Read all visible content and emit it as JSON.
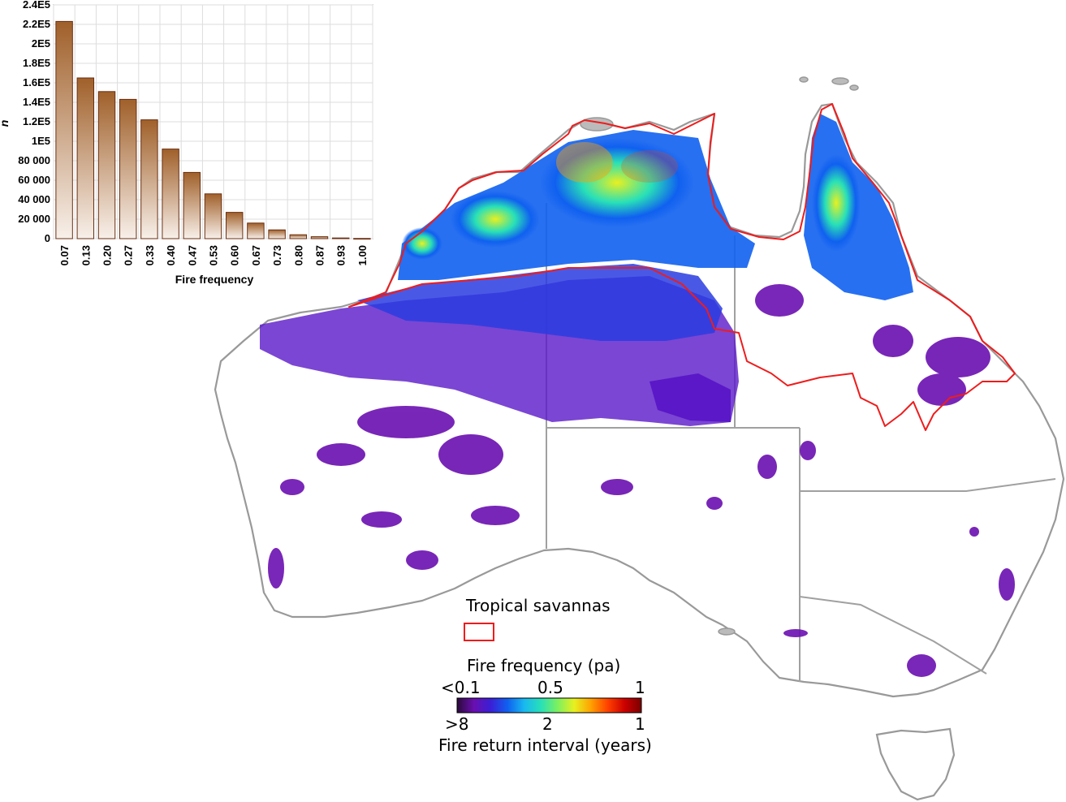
{
  "legend": {
    "savanna_label": "Tropical savannas",
    "frequency_title": "Fire frequency (pa)",
    "frequency_ticks": [
      "<0.1",
      "0.5",
      "1"
    ],
    "interval_ticks": [
      ">8",
      "2",
      "1"
    ],
    "interval_title": "Fire return interval (years)",
    "colormap": [
      "#2a0a3a",
      "#6a0fb0",
      "#3b1fd6",
      "#1060f0",
      "#18b8f0",
      "#28e0b8",
      "#7cf060",
      "#e8f020",
      "#ffa000",
      "#ff4000",
      "#cc0000",
      "#7a0000"
    ]
  },
  "colors": {
    "savanna_boundary": "#ee1c1c",
    "coastline": "#999999",
    "state_border": "#a0a0a0",
    "bar_top": "#a0602a",
    "bar_bottom": "#f8f0ea",
    "bar_stroke": "#6b2e10"
  },
  "chart_data": {
    "type": "bar",
    "xlabel": "Fire frequency",
    "ylabel": "n",
    "categories": [
      "0.07",
      "0.13",
      "0.20",
      "0.27",
      "0.33",
      "0.40",
      "0.47",
      "0.53",
      "0.60",
      "0.67",
      "0.73",
      "0.80",
      "0.87",
      "0.93",
      "1.00"
    ],
    "values": [
      223000,
      165000,
      151000,
      143000,
      122000,
      92000,
      68000,
      46000,
      27000,
      16000,
      9000,
      4000,
      2000,
      700,
      200
    ],
    "ylim": [
      0,
      240000
    ],
    "yticks": [
      0,
      20000,
      40000,
      60000,
      80000,
      100000,
      120000,
      140000,
      160000,
      180000,
      200000,
      220000,
      240000
    ],
    "ytick_labels": [
      "0",
      "20 000",
      "40 000",
      "60 000",
      "80 000",
      "1E5",
      "1.2E5",
      "1.4E5",
      "1.6E5",
      "1.8E5",
      "2E5",
      "2.2E5",
      "2.4E5"
    ],
    "grid": true
  }
}
